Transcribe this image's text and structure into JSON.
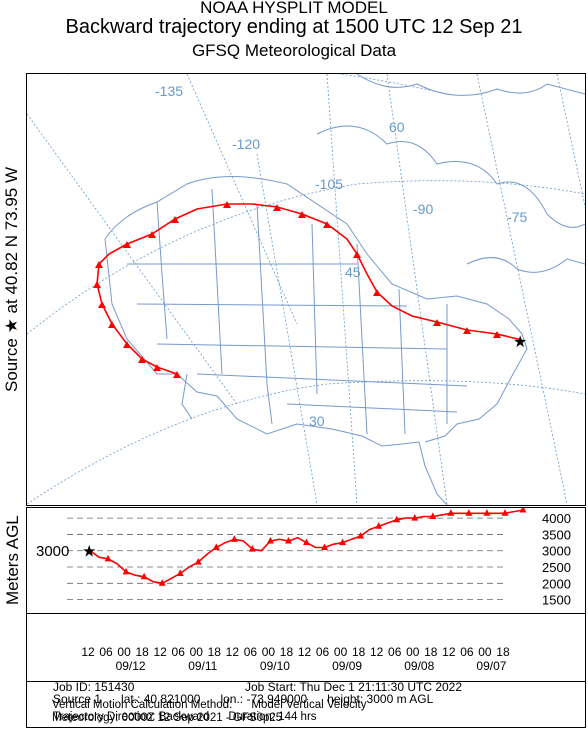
{
  "titles": {
    "line1": "NOAA HYSPLIT MODEL",
    "line2": "Backward trajectory ending at 1500 UTC 12 Sep 21",
    "line3": "GFSQ Meteorological Data"
  },
  "source_label": "Source ★ at 40.82 N 73.95 W",
  "profile_ylabel": "Meters AGL",
  "start_height_label": "3000",
  "map": {
    "graticule_labels": [
      "-135",
      "-120",
      "-105",
      "-90",
      "-75",
      "60",
      "45",
      "30"
    ],
    "trajectory_color": "#ff0000",
    "graticule_color": "#6699cc",
    "border_color": "#7799cc"
  },
  "chart_data": {
    "type": "line",
    "title": "",
    "ylabel": "Meters AGL",
    "yticks": [
      1500,
      2000,
      2500,
      3000,
      3500,
      4000
    ],
    "ylim": [
      1150,
      4250
    ],
    "xlim_hours_back": [
      0,
      144
    ],
    "x_tick_labels": [
      "12",
      "06",
      "00",
      "18",
      "12",
      "06",
      "00",
      "18",
      "12",
      "06",
      "00",
      "18",
      "12",
      "06",
      "00",
      "18",
      "12",
      "06",
      "00",
      "18",
      "12",
      "06",
      "00",
      "18"
    ],
    "date_labels": [
      "09/12",
      "09/11",
      "09/10",
      "09/09",
      "09/08",
      "09/07"
    ],
    "series": [
      {
        "hours_back": [
          0,
          3,
          6,
          9,
          12,
          15,
          18,
          21,
          24,
          27,
          30,
          33,
          36,
          39,
          42,
          45,
          48,
          51,
          54,
          57,
          60,
          63,
          66,
          69,
          72,
          75,
          78,
          81,
          84,
          87,
          90,
          93,
          96,
          99,
          102,
          105,
          108,
          111,
          114,
          117,
          120,
          123,
          126,
          129,
          132,
          135,
          138,
          141,
          144
        ],
        "height_m": [
          3000,
          2800,
          2750,
          2600,
          2350,
          2250,
          2200,
          2050,
          2000,
          2150,
          2300,
          2500,
          2650,
          2900,
          3100,
          3250,
          3350,
          3300,
          3050,
          3000,
          3300,
          3350,
          3300,
          3400,
          3250,
          3100,
          3100,
          3200,
          3250,
          3350,
          3450,
          3650,
          3750,
          3850,
          3950,
          4000,
          4000,
          4050,
          4050,
          4100,
          4150,
          4150,
          4150,
          4150,
          4150,
          4150,
          4150,
          4200,
          4250
        ]
      }
    ]
  },
  "info": {
    "job_id": "Job ID: 151430",
    "job_start": "Job Start: Thu Dec  1 21:11:30 UTC 2022",
    "source": "Source 1      lat.: 40.821000      lon.: -73.949000      height: 3000 m AGL",
    "direction": "Trajectory Direction: Backward      Duration: 144 hrs",
    "vertical": "Vertical Motion Calculation Method:      Model Vertical Velocity",
    "meteorology": "Meteorology: 0000Z 12 Sep 2021 - GFS0p25"
  }
}
